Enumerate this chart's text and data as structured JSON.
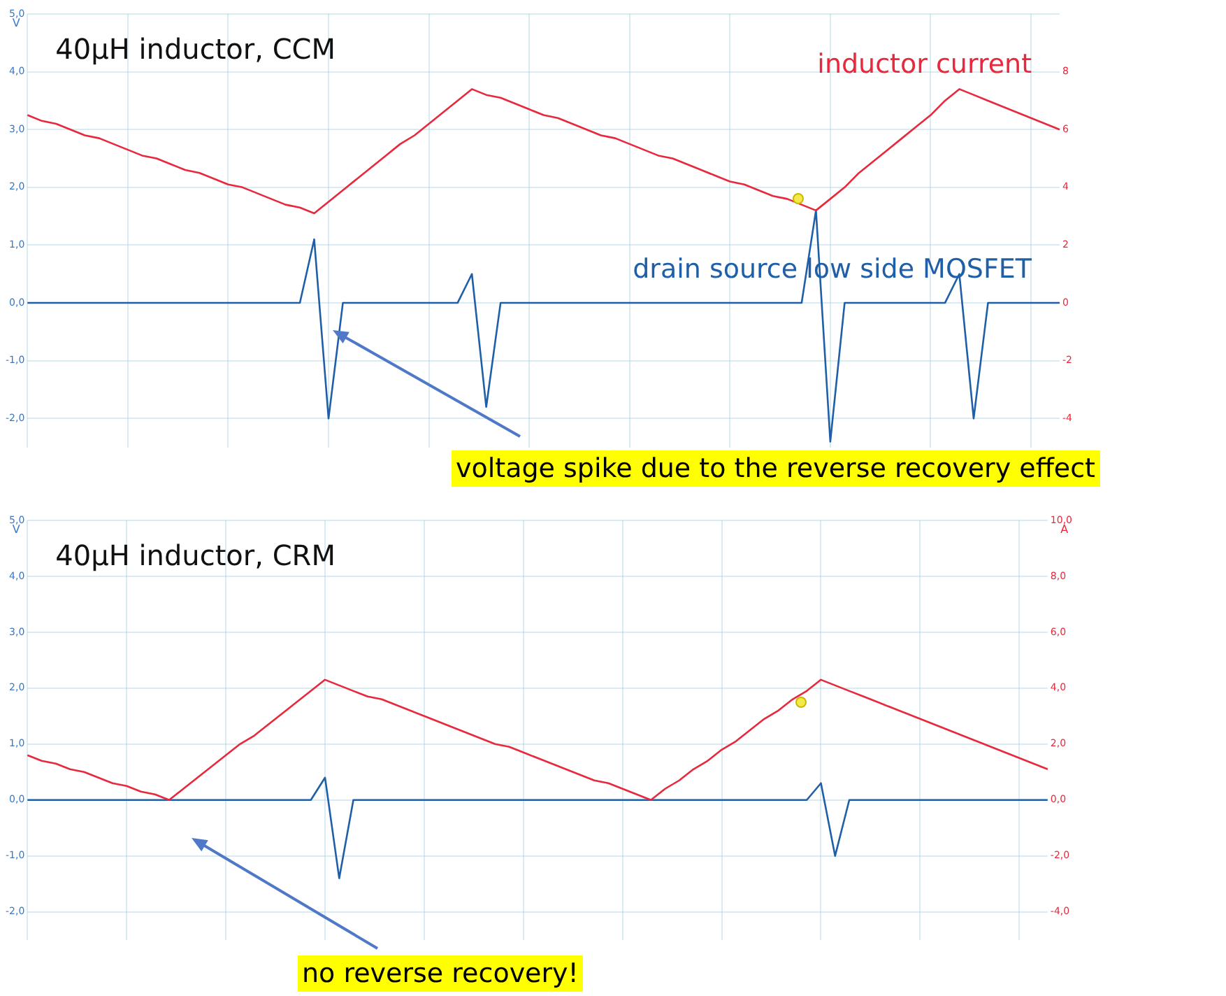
{
  "chart_data": [
    {
      "type": "line",
      "title": "40µH inductor, CCM",
      "ylabel": "V",
      "annotations": [
        "voltage spike due to the reverse recovery effect"
      ],
      "categories": [
        null,
        null,
        null,
        null,
        null,
        null,
        null,
        null,
        null,
        null,
        null,
        null,
        null,
        null,
        null,
        null,
        null,
        null,
        null,
        null,
        null,
        null,
        null,
        null,
        null,
        null,
        null,
        null,
        null,
        null,
        null,
        null,
        null,
        null,
        null,
        null,
        null,
        null,
        null,
        null,
        null,
        null,
        null,
        null,
        null,
        null,
        null,
        null,
        null,
        null,
        null,
        null,
        null,
        null,
        null,
        null,
        null,
        null,
        null,
        null,
        null,
        null,
        null,
        null,
        null,
        null,
        null,
        null,
        null,
        null,
        null,
        null,
        null
      ],
      "series": [
        {
          "name": "inductor current",
          "color": "#e8283c",
          "axis": "y2",
          "values": [
            6.5,
            6.3,
            6.2,
            6.0,
            5.8,
            5.7,
            5.5,
            5.3,
            5.1,
            5.0,
            4.8,
            4.6,
            4.5,
            4.3,
            4.1,
            4.0,
            3.8,
            3.6,
            3.4,
            3.3,
            3.1,
            3.5,
            3.9,
            4.3,
            4.7,
            5.1,
            5.5,
            5.8,
            6.2,
            6.6,
            7.0,
            7.4,
            7.2,
            7.1,
            6.9,
            6.7,
            6.5,
            6.4,
            6.2,
            6.0,
            5.8,
            5.7,
            5.5,
            5.3,
            5.1,
            5.0,
            4.8,
            4.6,
            4.4,
            4.2,
            4.1,
            3.9,
            3.7,
            3.6,
            3.4,
            3.2,
            3.6,
            4.0,
            4.5,
            4.9,
            5.3,
            5.7,
            6.1,
            6.5,
            7.0,
            7.4,
            7.2,
            7.0,
            6.8,
            6.6,
            6.4,
            6.2,
            6.0
          ]
        },
        {
          "name": "drain source low side MOSFET",
          "color": "#1f5fa8",
          "axis": "y",
          "values": [
            0,
            0,
            0,
            0,
            0,
            0,
            0,
            0,
            0,
            0,
            0,
            0,
            0,
            0,
            0,
            0,
            0,
            0,
            0,
            0,
            1.1,
            -2.0,
            0,
            0,
            0,
            0,
            0,
            0,
            0,
            0,
            0,
            0.5,
            -1.8,
            0,
            0,
            0,
            0,
            0,
            0,
            0,
            0,
            0,
            0,
            0,
            0,
            0,
            0,
            0,
            0,
            0,
            0,
            0,
            0,
            0,
            0,
            1.6,
            -2.4,
            0,
            0,
            0,
            0,
            0,
            0,
            0,
            0,
            0.5,
            -2.0,
            0,
            0,
            0,
            0,
            0,
            0
          ]
        }
      ],
      "ylim": [
        -2.5,
        5
      ],
      "yticks": [
        {
          "value": -2,
          "label": "-2,0"
        },
        {
          "value": -1,
          "label": "-1,0"
        },
        {
          "value": 0,
          "label": "0,0"
        },
        {
          "value": 1,
          "label": "1,0"
        },
        {
          "value": 2,
          "label": "2,0"
        },
        {
          "value": 3,
          "label": "3,0"
        },
        {
          "value": 4,
          "label": "4,0"
        },
        {
          "value": 5,
          "label": "5,0"
        }
      ],
      "y2lim": [
        -5,
        10
      ],
      "y2ticks": [
        -4,
        -2,
        0,
        2,
        4,
        6,
        8
      ],
      "grid": true
    },
    {
      "type": "line",
      "title": "40µH inductor, CRM",
      "ylabel": "V",
      "y2label": "A",
      "annotations": [
        "no reverse recovery!"
      ],
      "categories": [
        null,
        null,
        null,
        null,
        null,
        null,
        null,
        null,
        null,
        null,
        null,
        null,
        null,
        null,
        null,
        null,
        null,
        null,
        null,
        null,
        null,
        null,
        null,
        null,
        null,
        null,
        null,
        null,
        null,
        null,
        null,
        null,
        null,
        null,
        null,
        null,
        null,
        null,
        null,
        null,
        null,
        null,
        null,
        null,
        null,
        null,
        null,
        null,
        null,
        null,
        null,
        null,
        null,
        null,
        null,
        null,
        null,
        null,
        null,
        null,
        null,
        null,
        null,
        null,
        null,
        null,
        null,
        null,
        null,
        null,
        null,
        null,
        null
      ],
      "series": [
        {
          "color": "#e8283c",
          "axis": "y2",
          "values": [
            1.6,
            1.4,
            1.3,
            1.1,
            1.0,
            0.8,
            0.6,
            0.5,
            0.3,
            0.2,
            0.0,
            0.4,
            0.8,
            1.2,
            1.6,
            2.0,
            2.3,
            2.7,
            3.1,
            3.5,
            3.9,
            4.3,
            4.1,
            3.9,
            3.7,
            3.6,
            3.4,
            3.2,
            3.0,
            2.8,
            2.6,
            2.4,
            2.2,
            2.0,
            1.9,
            1.7,
            1.5,
            1.3,
            1.1,
            0.9,
            0.7,
            0.6,
            0.4,
            0.2,
            0.0,
            0.4,
            0.7,
            1.1,
            1.4,
            1.8,
            2.1,
            2.5,
            2.9,
            3.2,
            3.6,
            3.9,
            4.3,
            4.1,
            3.9,
            3.7,
            3.5,
            3.3,
            3.1,
            2.9,
            2.7,
            2.5,
            2.3,
            2.1,
            1.9,
            1.7,
            1.5,
            1.3,
            1.1
          ]
        },
        {
          "color": "#1f5fa8",
          "axis": "y",
          "values": [
            0,
            0,
            0,
            0,
            0,
            0,
            0,
            0,
            0,
            0,
            0,
            0,
            0,
            0,
            0,
            0,
            0,
            0,
            0,
            0,
            0,
            0.4,
            -1.4,
            0,
            0,
            0,
            0,
            0,
            0,
            0,
            0,
            0,
            0,
            0,
            0,
            0,
            0,
            0,
            0,
            0,
            0,
            0,
            0,
            0,
            0,
            0,
            0,
            0,
            0,
            0,
            0,
            0,
            0,
            0,
            0,
            0,
            0.3,
            -1.0,
            0,
            0,
            0,
            0,
            0,
            0,
            0,
            0,
            0,
            0,
            0,
            0,
            0,
            0,
            0
          ]
        }
      ],
      "ylim": [
        -2.5,
        5
      ],
      "yticks": [
        {
          "value": -2,
          "label": "-2,0"
        },
        {
          "value": -1,
          "label": "-1,0"
        },
        {
          "value": 0,
          "label": "0,0"
        },
        {
          "value": 1,
          "label": "1,0"
        },
        {
          "value": 2,
          "label": "2,0"
        },
        {
          "value": 3,
          "label": "3,0"
        },
        {
          "value": 4,
          "label": "4,0"
        },
        {
          "value": 5,
          "label": "5,0"
        }
      ],
      "y2lim": [
        -5,
        10
      ],
      "y2ticks": [
        {
          "value": -4,
          "label": "-4,0"
        },
        {
          "value": -2,
          "label": "-2,0"
        },
        {
          "value": 0,
          "label": "0,0"
        },
        {
          "value": 2,
          "label": "2,0"
        },
        {
          "value": 4,
          "label": "4,0"
        },
        {
          "value": 6,
          "label": "6,0"
        },
        {
          "value": 8,
          "label": "8,0"
        },
        {
          "value": 10,
          "label": "10,0"
        }
      ],
      "grid": true
    }
  ]
}
